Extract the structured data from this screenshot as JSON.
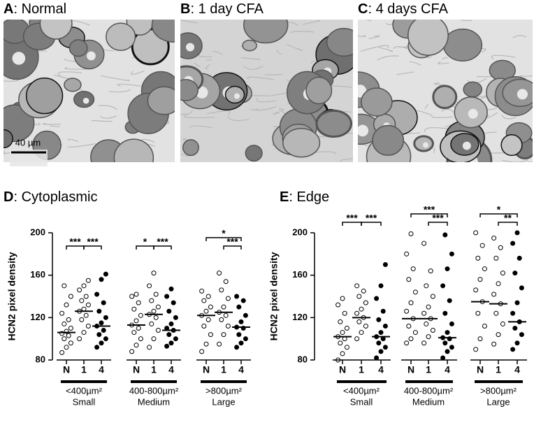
{
  "panels": [
    {
      "label": "A",
      "title": ": Normal"
    },
    {
      "label": "B",
      "title": ": 1 day CFA"
    },
    {
      "label": "C",
      "title": ": 4 days CFA"
    }
  ],
  "scale_bar": "40 µm",
  "chart_data": [
    {
      "type": "dot",
      "label": "D",
      "title": ": Cytoplasmic",
      "ylabel": "HCN2 pixel density",
      "ylim": [
        80,
        200
      ],
      "yticks": [
        80,
        120,
        160,
        200
      ],
      "categories": [
        "N",
        "1",
        "4"
      ],
      "markers": [
        "open",
        "open",
        "filled"
      ],
      "color": "#000000",
      "groups": [
        {
          "size": "<400µm²",
          "name": "Small",
          "medians": [
            106,
            126,
            112
          ],
          "values": [
            [
              87,
              92,
              96,
              100,
              103,
              105,
              107,
              110,
              114,
              118,
              124,
              132,
              140,
              150
            ],
            [
              100,
              106,
              112,
              118,
              122,
              126,
              128,
              132,
              136,
              140,
              146,
              150,
              155
            ],
            [
              92,
              96,
              100,
              104,
              108,
              112,
              115,
              120,
              126,
              134,
              142,
              156,
              161
            ]
          ],
          "brackets": [
            {
              "between": [
                "N",
                "1"
              ],
              "label": "***"
            },
            {
              "between": [
                "1",
                "4"
              ],
              "label": "***"
            }
          ]
        },
        {
          "size": "400-800µm²",
          "name": "Medium",
          "medians": [
            113,
            123,
            108
          ],
          "values": [
            [
              88,
              94,
              100,
              106,
              110,
              113,
              117,
              122,
              128,
              134,
              140,
              142
            ],
            [
              92,
              100,
              108,
              114,
              120,
              123,
              126,
              130,
              136,
              142,
              150,
              162
            ],
            [
              93,
              96,
              100,
              104,
              108,
              110,
              114,
              120,
              126,
              134,
              140,
              147
            ]
          ],
          "brackets": [
            {
              "between": [
                "N",
                "1"
              ],
              "label": "*"
            },
            {
              "between": [
                "1",
                "4"
              ],
              "label": "***"
            }
          ]
        },
        {
          "size": ">800µm²",
          "name": "Large",
          "medians": [
            122,
            125,
            111
          ],
          "values": [
            [
              88,
              95,
              104,
              112,
              118,
              122,
              126,
              130,
              136,
              140,
              145
            ],
            [
              95,
              104,
              112,
              118,
              122,
              125,
              130,
              138,
              146,
              154,
              162
            ],
            [
              92,
              96,
              100,
              104,
              110,
              111,
              116,
              122,
              130,
              136,
              140
            ]
          ],
          "brackets": [
            {
              "between": [
                "N",
                "4"
              ],
              "label": "*"
            },
            {
              "between": [
                "1",
                "4"
              ],
              "label": "***"
            }
          ]
        }
      ]
    },
    {
      "type": "dot",
      "label": "E",
      "title": ": Edge",
      "ylabel": "HCN2 pixel density",
      "ylim": [
        80,
        200
      ],
      "yticks": [
        80,
        120,
        160,
        200
      ],
      "categories": [
        "N",
        "1",
        "4"
      ],
      "markers": [
        "open",
        "open",
        "filled"
      ],
      "color": "#000000",
      "groups": [
        {
          "size": "<400µm²",
          "name": "Small",
          "medians": [
            102,
            120,
            102
          ],
          "values": [
            [
              80,
              86,
              92,
              96,
              100,
              102,
              106,
              110,
              116,
              124,
              132,
              138
            ],
            [
              100,
              106,
              112,
              116,
              120,
              124,
              128,
              134,
              140,
              145,
              150
            ],
            [
              82,
              88,
              92,
              96,
              100,
              102,
              106,
              112,
              118,
              126,
              138,
              150,
              170
            ]
          ],
          "brackets": [
            {
              "between": [
                "N",
                "1"
              ],
              "label": "***"
            },
            {
              "between": [
                "1",
                "4"
              ],
              "label": "***"
            }
          ]
        },
        {
          "size": "400-800µm²",
          "name": "Medium",
          "medians": [
            119,
            119,
            101
          ],
          "values": [
            [
              96,
              100,
              106,
              112,
              119,
              126,
              134,
              144,
              156,
              166,
              180,
              199
            ],
            [
              96,
              102,
              108,
              114,
              119,
              124,
              130,
              140,
              150,
              164,
              190
            ],
            [
              82,
              88,
              92,
              96,
              100,
              101,
              106,
              114,
              124,
              136,
              150,
              166,
              180,
              198
            ]
          ],
          "brackets": [
            {
              "between": [
                "N",
                "4"
              ],
              "label": "***"
            },
            {
              "between": [
                "1",
                "4"
              ],
              "label": "***"
            }
          ]
        },
        {
          "size": ">800µm²",
          "name": "Large",
          "medians": [
            135,
            133,
            116
          ],
          "values": [
            [
              90,
              100,
              112,
              124,
              135,
              146,
              156,
              166,
              176,
              188,
              200
            ],
            [
              95,
              104,
              114,
              124,
              133,
              142,
              152,
              162,
              176,
              186,
              195
            ],
            [
              90,
              96,
              104,
              110,
              116,
              124,
              134,
              148,
              162,
              176,
              190,
              200
            ]
          ],
          "brackets": [
            {
              "between": [
                "N",
                "4"
              ],
              "label": "*"
            },
            {
              "between": [
                "1",
                "4"
              ],
              "label": "**"
            }
          ]
        }
      ]
    }
  ]
}
